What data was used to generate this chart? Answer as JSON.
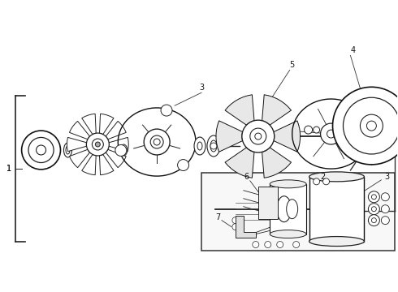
{
  "background_color": "#ffffff",
  "line_color": "#222222",
  "fig_width": 4.9,
  "fig_height": 3.6,
  "dpi": 100
}
